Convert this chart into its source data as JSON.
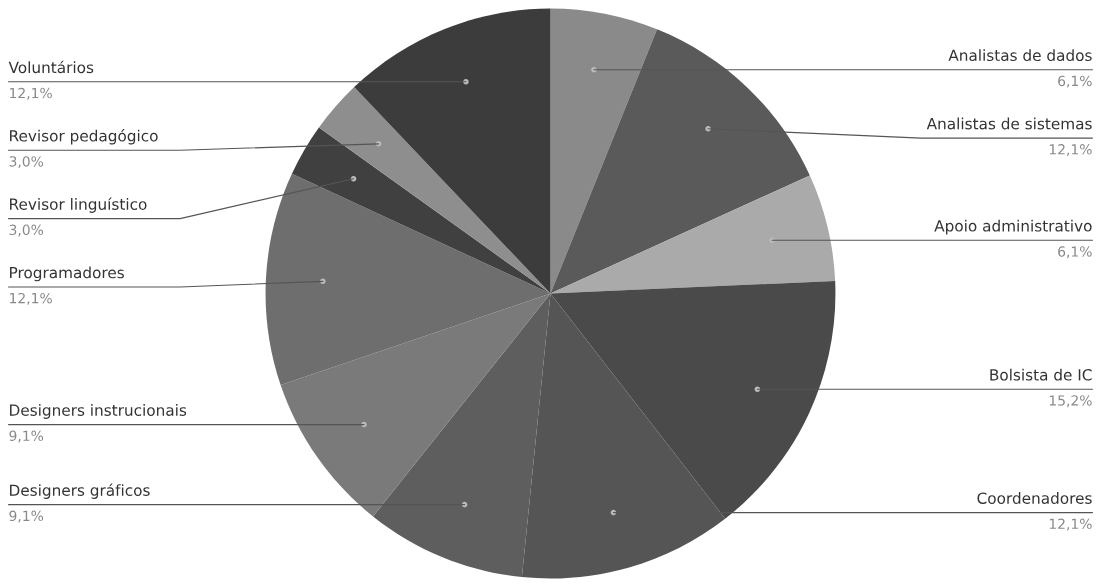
{
  "chart_data": {
    "type": "pie",
    "categories": [
      "Analistas de dados",
      "Analistas de sistemas",
      "Apoio administrativo",
      "Bolsista de IC",
      "Coordenadores",
      "Designers gráficos",
      "Designers instrucionais",
      "Programadores",
      "Revisor linguístico",
      "Revisor pedagógico",
      "Voluntários"
    ],
    "values": [
      6.1,
      12.1,
      6.1,
      15.2,
      12.1,
      9.1,
      9.1,
      12.1,
      3.0,
      3.0,
      12.1
    ],
    "value_labels": [
      "6,1%",
      "12,1%",
      "6,1%",
      "15,2%",
      "12,1%",
      "9,1%",
      "9,1%",
      "12,1%",
      "3,0%",
      "3,0%",
      "12,1%"
    ],
    "colors": [
      "#8a8a8a",
      "#5a5a5a",
      "#aaaaaa",
      "#4a4a4a",
      "#555555",
      "#5e5e5e",
      "#7a7a7a",
      "#6e6e6e",
      "#404040",
      "#8e8e8e",
      "#3c3c3c"
    ]
  }
}
